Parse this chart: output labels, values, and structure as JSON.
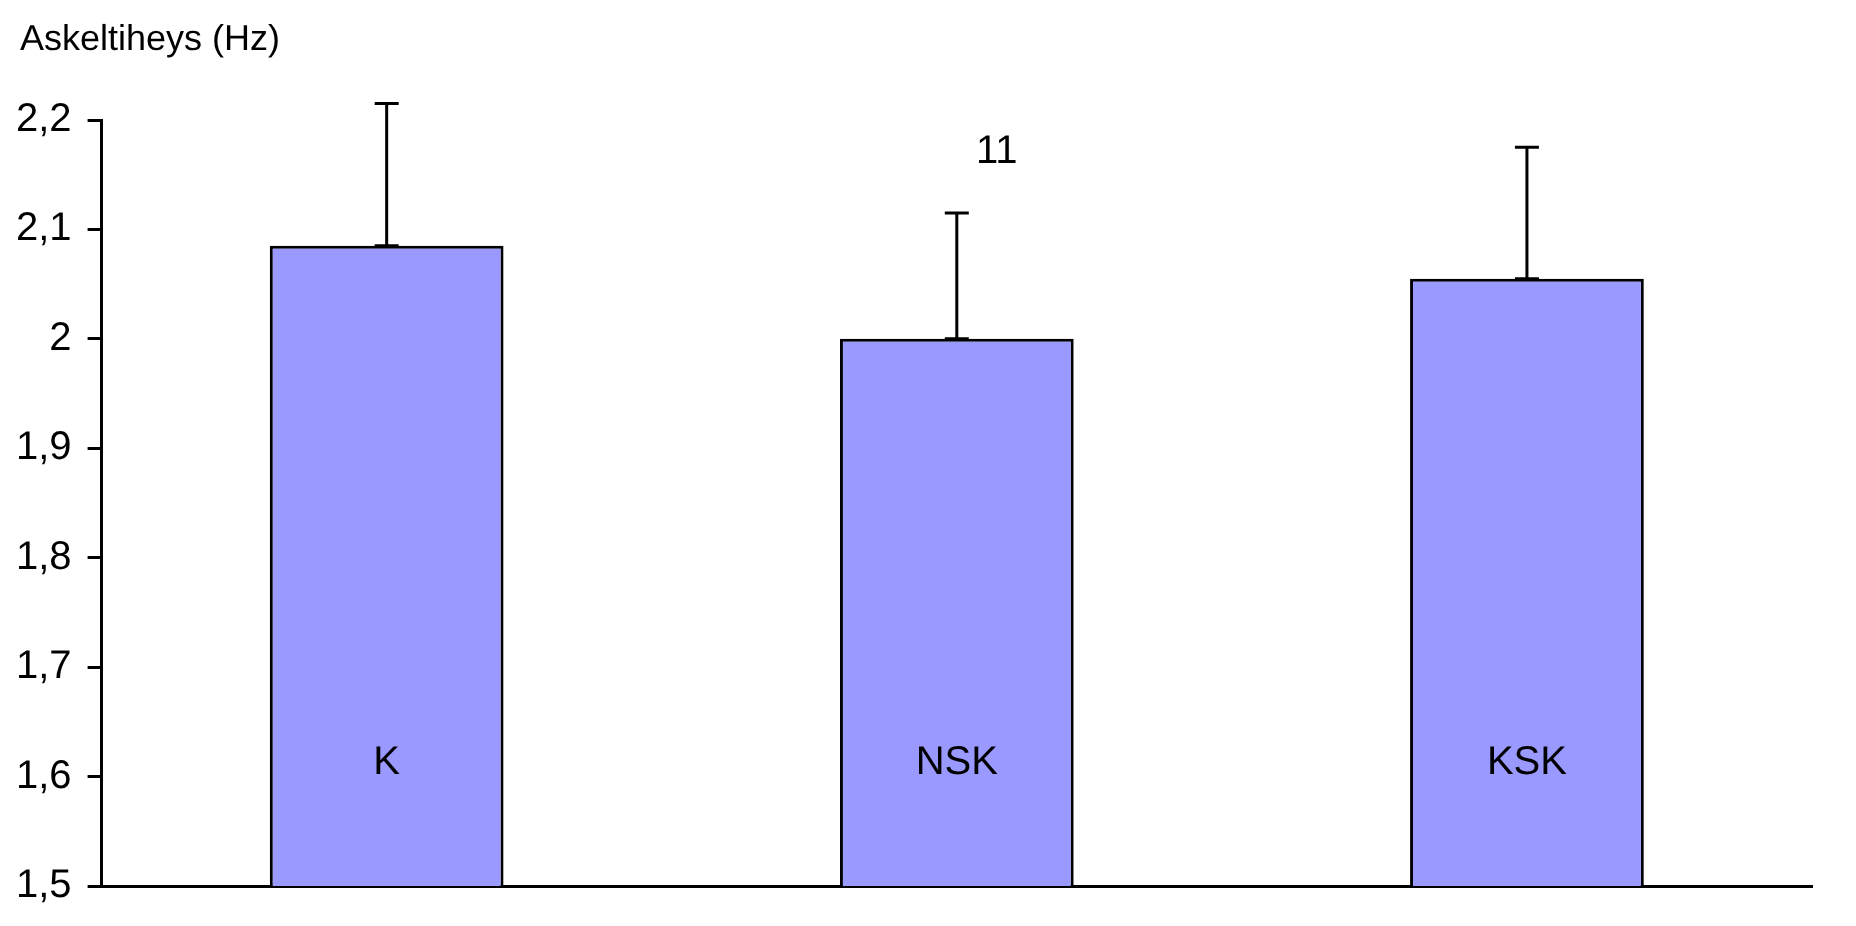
{
  "chart_data": {
    "type": "bar",
    "ylabel": "Askeltiheys (Hz)",
    "categories": [
      "K",
      "NSK",
      "KSK"
    ],
    "values": [
      2.085,
      2.0,
      2.055
    ],
    "errors": [
      [
        2.085,
        2.215
      ],
      [
        2.0,
        2.115
      ],
      [
        2.055,
        2.175
      ]
    ],
    "color": "#9999ff",
    "ylim": [
      1.5,
      2.2
    ],
    "yticks": [
      {
        "value": 1.5,
        "label": "1,5"
      },
      {
        "value": 1.6,
        "label": "1,6"
      },
      {
        "value": 1.7,
        "label": "1,7"
      },
      {
        "value": 1.8,
        "label": "1,8"
      },
      {
        "value": 1.9,
        "label": "1,9"
      },
      2,
      {
        "value": 2.1,
        "label": "2,1"
      },
      {
        "value": 2.2,
        "label": "2,2"
      }
    ],
    "annotations": [
      "11"
    ],
    "grid": false,
    "legend": false
  }
}
